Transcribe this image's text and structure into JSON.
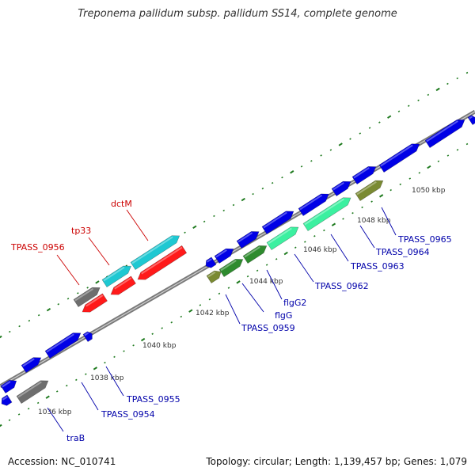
{
  "title": "Treponema pallidum subsp. pallidum SS14, complete genome",
  "footer": {
    "accession": "Accession: NC_010741",
    "summary": "Topology: circular; Length: 1,139,457 bp; Genes: 1,079"
  },
  "colors": {
    "backbone": "#8c8c8c",
    "cds": "#0000e6",
    "cyan": "#1ec8d2",
    "red": "#ff1a1a",
    "gray": "#6e6e6e",
    "green": "#2e8b2e",
    "mint": "#3cf0a0",
    "olive": "#7a8a32",
    "tick": "#1e7a1e",
    "label_blue": "#0000aa",
    "label_red": "#cc0000"
  },
  "kbp_labels": [
    "1036 kbp",
    "1038 kbp",
    "1040 kbp",
    "1042 kbp",
    "1044 kbp",
    "1046 kbp",
    "1048 kbp",
    "1050 kbp"
  ],
  "gene_labels": [
    {
      "text": "traB",
      "color": "blue"
    },
    {
      "text": "TPASS_0954",
      "color": "blue"
    },
    {
      "text": "TPASS_0955",
      "color": "blue"
    },
    {
      "text": "TPASS_0959",
      "color": "blue"
    },
    {
      "text": "flgG",
      "color": "blue"
    },
    {
      "text": "flgG2",
      "color": "blue"
    },
    {
      "text": "TPASS_0962",
      "color": "blue"
    },
    {
      "text": "TPASS_0963",
      "color": "blue"
    },
    {
      "text": "TPASS_0964",
      "color": "blue"
    },
    {
      "text": "TPASS_0965",
      "color": "blue"
    },
    {
      "text": "TPASS_0956",
      "color": "red"
    },
    {
      "text": "tp33",
      "color": "red"
    },
    {
      "text": "dctM",
      "color": "red"
    }
  ]
}
